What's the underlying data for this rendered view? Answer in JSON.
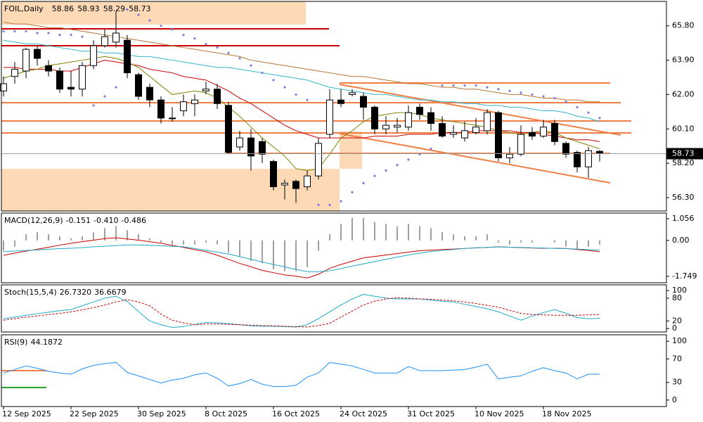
{
  "chart_data": [
    {
      "type": "candlestick",
      "title": "FOIL,Daily",
      "categories": [
        "12 Sep 2025",
        null,
        null,
        null,
        null,
        null,
        "22 Sep 2025",
        null,
        null,
        null,
        null,
        null,
        "30 Sep 2025",
        null,
        null,
        null,
        null,
        null,
        "8 Oct 2025",
        null,
        null,
        null,
        null,
        null,
        "16 Oct 2025",
        null,
        null,
        null,
        null,
        null,
        "24 Oct 2025",
        null,
        null,
        null,
        null,
        null,
        "31 Oct 2025",
        null,
        null,
        null,
        null,
        null,
        "10 Nov 2025",
        null,
        null,
        null,
        null,
        null,
        "18 Nov 2025",
        null,
        null,
        null,
        null,
        null
      ],
      "open": [
        62.2,
        63.0,
        63.3,
        64.5,
        63.6,
        63.3,
        62.4,
        62.3,
        63.6,
        64.7,
        64.9,
        65.0,
        63.1,
        62.4,
        61.7,
        60.7,
        61.1,
        61.5,
        62.2,
        62.3,
        61.4,
        59.1,
        59.6,
        59.4,
        58.3,
        57.0,
        57.2,
        56.9,
        57.5,
        59.8,
        61.7,
        62.0,
        61.9,
        61.3,
        60.1,
        60.2,
        60.2,
        61.3,
        61.0,
        60.4,
        59.8,
        59.6,
        59.9,
        60.0,
        61.0,
        58.5,
        58.7,
        59.9,
        59.7,
        60.4,
        59.3,
        58.8,
        58.0,
        58.86
      ],
      "high": [
        63.0,
        63.8,
        64.6,
        64.7,
        63.9,
        63.5,
        63.3,
        63.8,
        65.0,
        65.6,
        66.6,
        65.3,
        63.2,
        62.6,
        61.9,
        61.3,
        62.0,
        62.0,
        62.7,
        62.6,
        61.6,
        60.0,
        60.1,
        59.6,
        58.4,
        57.3,
        57.3,
        57.8,
        59.6,
        62.3,
        62.3,
        62.3,
        62.1,
        61.4,
        60.8,
        60.7,
        61.4,
        61.5,
        61.3,
        60.8,
        60.3,
        60.5,
        60.7,
        61.2,
        61.1,
        59.1,
        60.3,
        60.2,
        60.6,
        60.6,
        59.4,
        58.9,
        59.1,
        58.93
      ],
      "low": [
        61.9,
        62.6,
        62.9,
        63.6,
        63.0,
        62.1,
        61.9,
        61.9,
        63.4,
        64.6,
        64.6,
        62.9,
        61.7,
        61.3,
        60.4,
        60.5,
        60.8,
        60.8,
        62.0,
        61.2,
        58.7,
        58.9,
        57.8,
        58.2,
        56.7,
        56.2,
        56.0,
        56.7,
        57.3,
        59.6,
        61.3,
        61.9,
        60.6,
        59.8,
        59.8,
        59.9,
        60.0,
        60.6,
        60.0,
        59.6,
        59.6,
        59.4,
        59.8,
        59.8,
        58.3,
        58.2,
        58.6,
        59.5,
        59.6,
        59.2,
        58.5,
        57.7,
        57.4,
        58.29
      ],
      "close": [
        62.6,
        63.4,
        64.5,
        64.0,
        63.3,
        62.3,
        62.3,
        63.6,
        64.7,
        65.2,
        65.4,
        63.2,
        61.9,
        61.7,
        60.7,
        60.7,
        61.6,
        61.7,
        62.3,
        61.5,
        58.8,
        59.6,
        58.6,
        58.7,
        56.9,
        57.1,
        56.8,
        57.5,
        59.3,
        61.7,
        61.5,
        62.1,
        61.3,
        60.1,
        60.3,
        60.3,
        61.0,
        60.9,
        60.4,
        59.7,
        59.9,
        60.0,
        60.2,
        61.0,
        58.5,
        58.7,
        59.8,
        59.7,
        60.2,
        59.4,
        58.7,
        58.0,
        58.9,
        58.73
      ],
      "overlays": [
        {
          "color": "#b87333",
          "values": [
            66.0,
            65.9,
            65.9,
            65.8,
            65.7,
            65.7,
            65.6,
            65.5,
            65.4,
            65.3,
            65.2,
            65.1,
            65.0,
            64.9,
            64.8,
            64.7,
            64.6,
            64.5,
            64.4,
            64.3,
            64.2,
            64.1,
            63.9,
            63.8,
            63.7,
            63.6,
            63.5,
            63.4,
            63.3,
            63.2,
            63.1,
            63.0,
            63.0,
            62.9,
            62.8,
            62.7,
            62.6,
            62.6,
            62.5,
            62.4,
            62.4,
            62.3,
            62.3,
            62.2,
            62.1,
            62.0,
            62.0,
            61.9,
            61.8,
            61.8,
            61.7,
            61.7,
            61.6,
            61.6
          ]
        },
        {
          "color": "#33b5cc",
          "values": [
            65.0,
            64.9,
            64.8,
            64.8,
            64.7,
            64.6,
            64.5,
            64.4,
            64.4,
            64.3,
            64.3,
            64.2,
            64.1,
            64.1,
            64.0,
            63.9,
            63.8,
            63.7,
            63.6,
            63.5,
            63.5,
            63.4,
            63.3,
            63.2,
            63.1,
            63.0,
            62.9,
            62.8,
            62.6,
            62.4,
            62.3,
            62.2,
            62.1,
            62.0,
            62.0,
            61.9,
            61.8,
            61.7,
            61.7,
            61.6,
            61.6,
            61.5,
            61.5,
            61.4,
            61.4,
            61.3,
            61.3,
            61.2,
            61.1,
            61.1,
            61.0,
            60.8,
            60.7,
            60.5
          ]
        },
        {
          "color": "#cc0000",
          "values": [
            63.5,
            63.5,
            63.4,
            63.4,
            63.4,
            63.3,
            63.3,
            63.5,
            63.7,
            63.9,
            63.8,
            63.7,
            63.6,
            63.4,
            63.3,
            63.2,
            63.0,
            62.9,
            62.8,
            62.5,
            62.2,
            61.8,
            61.5,
            61.1,
            60.7,
            60.3,
            60.0,
            59.8,
            59.6,
            59.6,
            59.6,
            59.6,
            59.6,
            59.7,
            59.7,
            59.7,
            59.8,
            59.8,
            59.8,
            59.9,
            59.9,
            59.9,
            60.0,
            60.0,
            60.0,
            60.0,
            59.9,
            59.9,
            59.8,
            59.7,
            59.6,
            59.5,
            59.5,
            59.4
          ]
        },
        {
          "color": "#808000",
          "values": [
            62.9,
            63.1,
            63.3,
            63.4,
            63.6,
            63.7,
            63.8,
            63.9,
            64.0,
            64.1,
            64.0,
            63.8,
            63.5,
            63.0,
            62.5,
            62.0,
            62.1,
            62.2,
            62.1,
            61.8,
            61.3,
            60.8,
            60.2,
            59.6,
            59.1,
            58.6,
            57.9,
            57.8,
            57.9,
            58.7,
            59.6,
            60.0,
            60.5,
            60.8,
            60.9,
            61.0,
            61.0,
            60.9,
            60.7,
            60.6,
            60.5,
            60.4,
            60.3,
            60.2,
            60.0,
            59.9,
            59.8,
            59.9,
            60.0,
            59.9,
            59.6,
            59.4,
            59.2,
            59.0
          ]
        }
      ],
      "sar": {
        "color": "#7b7bdf",
        "values": [
          65.5,
          65.5,
          65.5,
          65.4,
          65.4,
          65.3,
          65.3,
          65.2,
          61.4,
          61.9,
          62.4,
          66.7,
          66.4,
          66.1,
          65.8,
          65.6,
          65.3,
          65.1,
          64.8,
          64.6,
          64.3,
          64.0,
          63.6,
          63.2,
          62.8,
          62.4,
          62.0,
          61.7,
          55.9,
          55.9,
          56.1,
          56.6,
          57.1,
          57.5,
          57.8,
          58.1,
          58.4,
          58.7,
          59.0,
          62.5,
          62.5,
          62.5,
          62.5,
          62.4,
          62.3,
          62.2,
          62.1,
          62.0,
          61.9,
          61.8,
          61.6,
          61.3,
          61.0,
          60.7
        ]
      },
      "ylim": [
        55.56,
        67.15
      ],
      "yticks": [
        {
          "value": 65.8,
          "label": "65.80"
        },
        {
          "value": 63.9,
          "label": "63.90"
        },
        {
          "value": 62.0,
          "label": "62.00"
        },
        {
          "value": 60.1,
          "label": "60.10"
        },
        {
          "value": 58.2,
          "label": "58.20"
        },
        {
          "value": 56.3,
          "label": "56.30"
        }
      ]
    },
    {
      "type": "macd",
      "title": "MACD(12,26,9)",
      "readings": [
        "-0.151",
        "-0.410",
        "-0.486"
      ],
      "histogram": {
        "color": "#a0a0a0",
        "values": [
          -0.5,
          -0.3,
          0.3,
          0.4,
          0.3,
          0.2,
          0.1,
          0.2,
          0.4,
          0.6,
          0.7,
          0.5,
          0.3,
          0.1,
          -0.1,
          -0.2,
          -0.2,
          -0.2,
          -0.1,
          -0.2,
          -0.6,
          -0.8,
          -1.0,
          -1.1,
          -1.4,
          -1.5,
          -1.5,
          -1.3,
          -0.5,
          0.3,
          0.8,
          1.1,
          1.1,
          0.9,
          0.8,
          0.7,
          0.8,
          0.7,
          0.6,
          0.4,
          0.3,
          0.2,
          0.2,
          0.3,
          -0.1,
          -0.2,
          -0.1,
          -0.1,
          0.0,
          -0.1,
          -0.3,
          -0.4,
          -0.3,
          -0.2
        ]
      },
      "series": [
        {
          "color": "#cc0000",
          "values": [
            -0.72,
            -0.62,
            -0.52,
            -0.43,
            -0.33,
            -0.23,
            -0.14,
            -0.06,
            0.01,
            0.09,
            0.13,
            0.07,
            0.01,
            -0.06,
            -0.14,
            -0.24,
            -0.34,
            -0.45,
            -0.55,
            -0.72,
            -0.92,
            -1.12,
            -1.28,
            -1.46,
            -1.57,
            -1.68,
            -1.74,
            -1.83,
            -1.65,
            -1.36,
            -1.17,
            -1.01,
            -0.85,
            -0.78,
            -0.71,
            -0.64,
            -0.57,
            -0.5,
            -0.47,
            -0.44,
            -0.42,
            -0.39,
            -0.36,
            -0.34,
            -0.31,
            -0.33,
            -0.35,
            -0.37,
            -0.38,
            -0.38,
            -0.39,
            -0.44,
            -0.49,
            -0.55
          ]
        },
        {
          "color": "#20a8c8",
          "values": [
            -0.55,
            -0.52,
            -0.49,
            -0.46,
            -0.43,
            -0.4,
            -0.38,
            -0.35,
            -0.31,
            -0.28,
            -0.25,
            -0.22,
            -0.22,
            -0.24,
            -0.26,
            -0.29,
            -0.31,
            -0.39,
            -0.48,
            -0.57,
            -0.66,
            -0.79,
            -0.92,
            -1.05,
            -1.17,
            -1.29,
            -1.41,
            -1.52,
            -1.52,
            -1.48,
            -1.37,
            -1.25,
            -1.14,
            -1.03,
            -0.92,
            -0.81,
            -0.71,
            -0.62,
            -0.54,
            -0.49,
            -0.44,
            -0.39,
            -0.36,
            -0.34,
            -0.32,
            -0.33,
            -0.34,
            -0.36,
            -0.37,
            -0.39,
            -0.4,
            -0.42,
            -0.45,
            -0.48
          ]
        }
      ],
      "ylim": [
        -2.06,
        1.33
      ],
      "yticks": [
        1.056,
        {
          "value": 0,
          "label": "0.00"
        },
        -1.749
      ]
    },
    {
      "type": "line",
      "title": "Stoch(15,5,4)",
      "readings": [
        "26.7320",
        "36.6679"
      ],
      "series": [
        {
          "color": "#20a8c8",
          "dash": false,
          "values": [
            26,
            30,
            35,
            39,
            43,
            47,
            50,
            60,
            70,
            80,
            85,
            71,
            45,
            20,
            10,
            3,
            5,
            11,
            16,
            15,
            13,
            10,
            7,
            6,
            6,
            5,
            4,
            10,
            26,
            44,
            62,
            78,
            90,
            85,
            80,
            78,
            78,
            78,
            75,
            72,
            70,
            64,
            58,
            52,
            44,
            33,
            22,
            33,
            42,
            50,
            40,
            29,
            26,
            27
          ]
        },
        {
          "color": "#cc0000",
          "dash": true,
          "values": [
            22,
            26,
            30,
            33,
            37,
            40,
            44,
            49,
            55,
            62,
            70,
            76,
            70,
            60,
            38,
            22,
            15,
            10,
            12,
            12,
            11,
            10,
            9,
            8,
            7,
            6,
            5,
            4,
            8,
            14,
            30,
            46,
            62,
            72,
            78,
            81,
            80,
            78,
            77,
            75,
            73,
            70,
            66,
            61,
            56,
            48,
            40,
            37,
            36,
            35,
            35,
            35,
            36,
            37
          ]
        }
      ],
      "ylim": [
        -9,
        115
      ],
      "yticks": [
        100,
        80,
        20,
        0
      ]
    },
    {
      "type": "line",
      "title": "RSI(9)",
      "readings": [
        "44.1872"
      ],
      "series": [
        {
          "color": "#1e90ff",
          "dash": false,
          "values": [
            46,
            52,
            58,
            54,
            49,
            46,
            44,
            53,
            59,
            62,
            64,
            47,
            41,
            35,
            29,
            34,
            37,
            43,
            46,
            37,
            24,
            28,
            35,
            27,
            23,
            23,
            25,
            39,
            46,
            64,
            61,
            58,
            52,
            46,
            46,
            46,
            57,
            50,
            50,
            50,
            51,
            52,
            56,
            61,
            36,
            39,
            41,
            49,
            55,
            50,
            46,
            36,
            44,
            44
          ]
        }
      ],
      "ylim": [
        -11,
        111
      ],
      "yticks": [
        100,
        70,
        30,
        0
      ]
    }
  ]
}
